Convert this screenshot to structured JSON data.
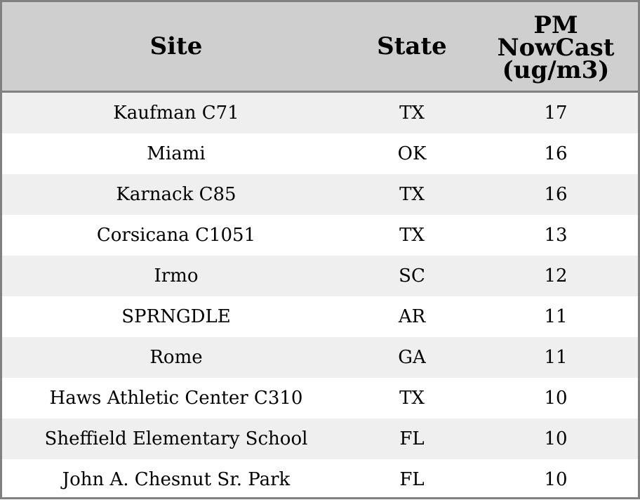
{
  "chart_data": {
    "type": "table",
    "columns": [
      "Site",
      "State",
      "PM\nNowCast\n(ug/m3)"
    ],
    "rows": [
      {
        "site": "Kaufman C71",
        "state": "TX",
        "pm": "17"
      },
      {
        "site": "Miami",
        "state": "OK",
        "pm": "16"
      },
      {
        "site": "Karnack C85",
        "state": "TX",
        "pm": "16"
      },
      {
        "site": "Corsicana C1051",
        "state": "TX",
        "pm": "13"
      },
      {
        "site": "Irmo",
        "state": "SC",
        "pm": "12"
      },
      {
        "site": "SPRNGDLE",
        "state": "AR",
        "pm": "11"
      },
      {
        "site": "Rome",
        "state": "GA",
        "pm": "11"
      },
      {
        "site": "Haws Athletic Center C310",
        "state": "TX",
        "pm": "10"
      },
      {
        "site": "Sheffield Elementary School",
        "state": "FL",
        "pm": "10"
      },
      {
        "site": "John A. Chesnut Sr. Park",
        "state": "FL",
        "pm": "10"
      }
    ]
  },
  "colors": {
    "header_bg": "#cfcfcf",
    "shaded_row": "#efefef",
    "border": "#808080"
  }
}
